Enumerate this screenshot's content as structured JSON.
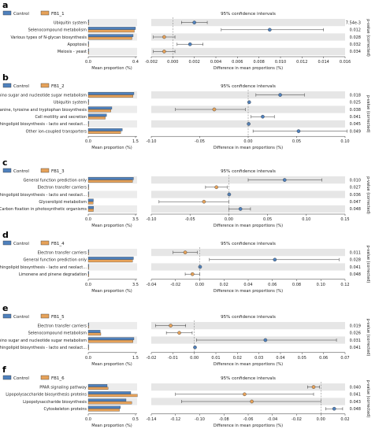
{
  "legend": {
    "control_label": "Control",
    "control_color": "#4f81bd",
    "fb_color": "#e6a25a",
    "legend_placement": "top-left"
  },
  "common": {
    "ci_title": "95% confidence intervals",
    "left_xlabel": "Mean proportion (%)",
    "right_xlabel": "Difference in mean proportions (%)",
    "pvalue_label": "p-value (corrected)"
  },
  "chart_data": [
    {
      "type": "bar",
      "panel": "a",
      "group_label": "FB1_1",
      "categories": [
        "Ubiquitin system",
        "Selenocompound metabolism",
        "Various types of N-glycan biosynthesis",
        "Apoptosis",
        "Meiosis - yeast"
      ],
      "series": [
        {
          "name": "Control",
          "values": [
            0.002,
            0.4,
            0.38,
            0.003,
            0.002
          ]
        },
        {
          "name": "FB1_1",
          "values": [
            0.004,
            0.39,
            0.37,
            0.002,
            0.001
          ]
        }
      ],
      "left_ticks": [
        "0.0",
        "0.4"
      ],
      "left_xlim": [
        0,
        0.4
      ],
      "right_ticks": [
        "-0.002",
        "0.000",
        "0.002",
        "0.004",
        "0.006",
        "0.008",
        "0.010",
        "0.012",
        "0.014",
        "0.016"
      ],
      "right_xlim": [
        -0.002,
        0.016
      ],
      "differences": [
        0.002,
        0.009,
        -0.0008,
        0.0016,
        -0.0008
      ],
      "ci_low": [
        0.0008,
        0.0045,
        -0.0018,
        0.0004,
        -0.0018
      ],
      "ci_high": [
        0.0032,
        0.014,
        0.0002,
        0.0028,
        0.0002
      ],
      "diff_colors": [
        "#4f81bd",
        "#4f81bd",
        "#e6a25a",
        "#4f81bd",
        "#e6a25a"
      ],
      "p_values": [
        "7.54e-3",
        "0.012",
        "0.028",
        "0.032",
        "0.034"
      ]
    },
    {
      "type": "bar",
      "panel": "b",
      "group_label": "FB1_2",
      "categories": [
        "Amino sugar and nucleotide sugar metabolism",
        "Ubiquitin system",
        "Phenylalanine, tyrosine and tryptophan biosynthesis",
        "Cell motility and secretion",
        "Glycosphingolipid biosynthesis - lacto and neolact...",
        "Other ion-coupled transporters"
      ],
      "series": [
        {
          "name": "Control",
          "values": [
            1.45,
            0.002,
            0.75,
            0.58,
            0.003,
            1.08
          ]
        },
        {
          "name": "FB1_2",
          "values": [
            1.42,
            0.003,
            0.72,
            0.54,
            0.002,
            1.03
          ]
        }
      ],
      "left_ticks": [
        "0.0",
        "1.5"
      ],
      "left_xlim": [
        0,
        1.5
      ],
      "right_ticks": [
        "-0.10",
        "-0.05",
        "0.00",
        "0.05",
        "0.10"
      ],
      "right_xlim": [
        -0.1,
        0.1
      ],
      "differences": [
        0.033,
        0.001,
        -0.035,
        0.015,
        0.0005,
        0.052
      ],
      "ci_low": [
        0.008,
        0.0003,
        -0.075,
        0.003,
        0.0001,
        0.005
      ],
      "ci_high": [
        0.058,
        0.0017,
        -0.003,
        0.027,
        0.0009,
        0.102
      ],
      "diff_colors": [
        "#4f81bd",
        "#4f81bd",
        "#e6a25a",
        "#4f81bd",
        "#4f81bd",
        "#4f81bd"
      ],
      "p_values": [
        "0.018",
        "0.025",
        "0.038",
        "0.041",
        "0.045",
        "0.049"
      ]
    },
    {
      "type": "bar",
      "panel": "c",
      "group_label": "FB1_3",
      "categories": [
        "General function prediction only",
        "Electron transfer carriers",
        "Glycosphingolipid biosynthesis - lacto and neolact...",
        "Glycerolipid metabolism",
        "Carbon fixation in photosynthetic organisms"
      ],
      "series": [
        {
          "name": "Control",
          "values": [
            3.35,
            0.005,
            0.003,
            0.38,
            0.4
          ]
        },
        {
          "name": "FB1_3",
          "values": [
            3.28,
            0.02,
            0.002,
            0.36,
            0.38
          ]
        }
      ],
      "left_ticks": [
        "0.0",
        "3.5"
      ],
      "left_xlim": [
        0,
        3.5
      ],
      "right_ticks": [
        "-0.10",
        "-0.05",
        "0.00",
        "0.05",
        "0.10",
        "0.15"
      ],
      "right_xlim": [
        -0.1,
        0.15
      ],
      "differences": [
        0.072,
        -0.016,
        0.0005,
        -0.032,
        0.015
      ],
      "ci_low": [
        0.025,
        -0.03,
        0.0001,
        -0.09,
        0.0
      ],
      "ci_high": [
        0.12,
        -0.002,
        0.0009,
        0.0,
        0.028
      ],
      "diff_colors": [
        "#4f81bd",
        "#e6a25a",
        "#4f81bd",
        "#e6a25a",
        "#4f81bd"
      ],
      "p_values": [
        "0.010",
        "0.027",
        "0.036",
        "0.047",
        "0.048"
      ]
    },
    {
      "type": "bar",
      "panel": "d",
      "group_label": "FB1_4",
      "categories": [
        "Electron transfer carriers",
        "General function prediction only",
        "Glycosphingolipid biosynthesis - lacto and neolact...",
        "Limonene and pinene degradation"
      ],
      "series": [
        {
          "name": "Control",
          "values": [
            0.005,
            3.35,
            0.003,
            0.04
          ]
        },
        {
          "name": "FB1_4",
          "values": [
            0.015,
            3.28,
            0.002,
            0.05
          ]
        }
      ],
      "left_ticks": [
        "0.0",
        "3.5"
      ],
      "left_xlim": [
        0,
        3.5
      ],
      "right_ticks": [
        "-0.04",
        "-0.02",
        "0.00",
        "0.02",
        "0.04",
        "0.06",
        "0.08",
        "0.10",
        "0.12"
      ],
      "right_xlim": [
        -0.04,
        0.12
      ],
      "differences": [
        -0.012,
        0.062,
        0.0003,
        -0.006
      ],
      "ci_low": [
        -0.022,
        0.008,
        0.0,
        -0.012
      ],
      "ci_high": [
        -0.002,
        0.115,
        0.0006,
        0.0
      ],
      "diff_colors": [
        "#e6a25a",
        "#4f81bd",
        "#4f81bd",
        "#e6a25a"
      ],
      "p_values": [
        "0.011",
        "0.028",
        "0.041",
        "0.048"
      ]
    },
    {
      "type": "bar",
      "panel": "e",
      "group_label": "FB1_5",
      "categories": [
        "Electron transfer carriers",
        "Selenocompound metabolism",
        "Amino sugar and nucleotide sugar metabolism",
        "Glycosphingolipid biosynthesis - lacto and neolact..."
      ],
      "series": [
        {
          "name": "Control",
          "values": [
            0.005,
            0.38,
            1.45,
            0.003
          ]
        },
        {
          "name": "FB1_5",
          "values": [
            0.016,
            0.4,
            1.42,
            0.002
          ]
        }
      ],
      "left_ticks": [
        "0.0",
        "1.5"
      ],
      "left_xlim": [
        0,
        1.5
      ],
      "right_ticks": [
        "-0.02",
        "-0.01",
        "0.00",
        "0.01",
        "0.02",
        "0.03",
        "0.04",
        "0.05",
        "0.06",
        "0.07"
      ],
      "right_xlim": [
        -0.02,
        0.07
      ],
      "differences": [
        -0.011,
        -0.007,
        0.033,
        0.0003
      ],
      "ci_low": [
        -0.018,
        -0.013,
        0.001,
        0.0001
      ],
      "ci_high": [
        -0.004,
        -0.001,
        0.066,
        0.0005
      ],
      "diff_colors": [
        "#e6a25a",
        "#e6a25a",
        "#4f81bd",
        "#4f81bd"
      ],
      "p_values": [
        "0.019",
        "0.026",
        "0.031",
        "0.041"
      ]
    },
    {
      "type": "bar",
      "panel": "f",
      "group_label": "FB1_6",
      "categories": [
        "PPAR signaling pathway",
        "Lipopolysaccharide biosynthesis proteins",
        "Lipopolysaccharide biosynthesis",
        "Cytoskeleton proteins"
      ],
      "series": [
        {
          "name": "Control",
          "values": [
            0.2,
            0.45,
            0.4,
            0.34
          ]
        },
        {
          "name": "FB1_6",
          "values": [
            0.21,
            0.52,
            0.46,
            0.33
          ]
        }
      ],
      "left_ticks": [
        "0.0",
        "0.5"
      ],
      "left_xlim": [
        0,
        0.5
      ],
      "right_ticks": [
        "-0.14",
        "-0.12",
        "-0.10",
        "-0.08",
        "-0.06",
        "-0.04",
        "-0.02",
        "0.00",
        "0.02"
      ],
      "right_xlim": [
        -0.14,
        0.02
      ],
      "differences": [
        -0.006,
        -0.063,
        -0.057,
        0.011
      ],
      "ci_low": [
        -0.011,
        -0.12,
        -0.115,
        0.004
      ],
      "ci_high": [
        -0.001,
        -0.006,
        0.0,
        0.018
      ],
      "diff_colors": [
        "#e6a25a",
        "#e6a25a",
        "#e6a25a",
        "#4f81bd"
      ],
      "p_values": [
        "0.040",
        "0.041",
        "0.043",
        "0.048"
      ]
    }
  ]
}
